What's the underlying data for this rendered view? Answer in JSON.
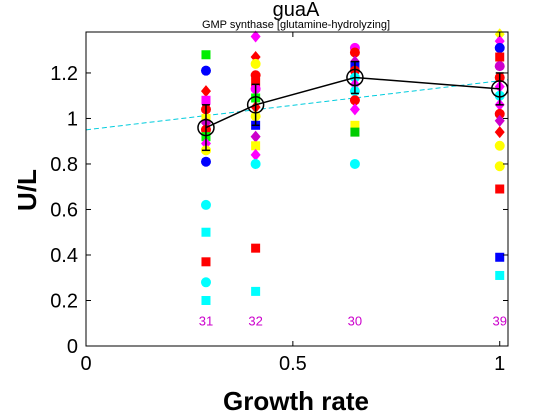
{
  "chart_data": {
    "type": "scatter",
    "title": "guaA",
    "subtitle": "GMP synthase [glutamine-hydrolyzing]",
    "xlabel": "Growth rate",
    "ylabel": "U/L",
    "xlim": [
      0,
      1.02
    ],
    "ylim": [
      0,
      1.38
    ],
    "xticks": [
      0,
      0.5,
      1
    ],
    "xtick_labels": [
      "0",
      "0.5",
      "1"
    ],
    "yticks": [
      0,
      0.2,
      0.4,
      0.6,
      0.8,
      1,
      1.2
    ],
    "ytick_labels": [
      "0",
      "0.2",
      "0.4",
      "0.6",
      "0.8",
      "1",
      "1.2"
    ],
    "grid": false,
    "groups": [
      {
        "x": 0.29,
        "count": "31",
        "mean": 0.96,
        "err": 0.1
      },
      {
        "x": 0.41,
        "count": "32",
        "mean": 1.06,
        "err": 0.09
      },
      {
        "x": 0.65,
        "count": "30",
        "mean": 1.18,
        "err": 0.07
      },
      {
        "x": 1.0,
        "count": "39",
        "mean": 1.13,
        "err": 0.07
      }
    ],
    "points": [
      {
        "x": 0.29,
        "y": 1.28,
        "shape": "square",
        "color": "#00ee00"
      },
      {
        "x": 0.29,
        "y": 1.21,
        "shape": "circle",
        "color": "#0000ff"
      },
      {
        "x": 0.29,
        "y": 1.12,
        "shape": "diamond",
        "color": "#ff0000"
      },
      {
        "x": 0.29,
        "y": 1.08,
        "shape": "square",
        "color": "#ff00ff"
      },
      {
        "x": 0.29,
        "y": 1.04,
        "shape": "circle",
        "color": "#ff0000"
      },
      {
        "x": 0.29,
        "y": 1.0,
        "shape": "square",
        "color": "#ffff00"
      },
      {
        "x": 0.29,
        "y": 0.98,
        "shape": "diamond",
        "color": "#cc00cc"
      },
      {
        "x": 0.29,
        "y": 0.95,
        "shape": "circle",
        "color": "#ff0000"
      },
      {
        "x": 0.29,
        "y": 0.92,
        "shape": "square",
        "color": "#00ff00"
      },
      {
        "x": 0.29,
        "y": 0.89,
        "shape": "diamond",
        "color": "#ff00ff"
      },
      {
        "x": 0.29,
        "y": 0.86,
        "shape": "circle",
        "color": "#ffff00"
      },
      {
        "x": 0.29,
        "y": 0.81,
        "shape": "circle",
        "color": "#0000ff"
      },
      {
        "x": 0.29,
        "y": 0.62,
        "shape": "circle",
        "color": "#00ffff"
      },
      {
        "x": 0.29,
        "y": 0.5,
        "shape": "square",
        "color": "#00ffff"
      },
      {
        "x": 0.29,
        "y": 0.37,
        "shape": "square",
        "color": "#ff0000"
      },
      {
        "x": 0.29,
        "y": 0.28,
        "shape": "circle",
        "color": "#00ffff"
      },
      {
        "x": 0.29,
        "y": 0.2,
        "shape": "square",
        "color": "#00ffff"
      },
      {
        "x": 0.41,
        "y": 1.36,
        "shape": "diamond",
        "color": "#ff00ff"
      },
      {
        "x": 0.41,
        "y": 1.27,
        "shape": "diamond",
        "color": "#ff0000"
      },
      {
        "x": 0.41,
        "y": 1.24,
        "shape": "circle",
        "color": "#ffff00"
      },
      {
        "x": 0.41,
        "y": 1.19,
        "shape": "circle",
        "color": "#ff0000"
      },
      {
        "x": 0.41,
        "y": 1.16,
        "shape": "square",
        "color": "#ff0000"
      },
      {
        "x": 0.41,
        "y": 1.13,
        "shape": "circle",
        "color": "#ff00ff"
      },
      {
        "x": 0.41,
        "y": 1.09,
        "shape": "square",
        "color": "#00ff00"
      },
      {
        "x": 0.41,
        "y": 1.05,
        "shape": "diamond",
        "color": "#ff0000"
      },
      {
        "x": 0.41,
        "y": 1.01,
        "shape": "circle",
        "color": "#ffff00"
      },
      {
        "x": 0.41,
        "y": 0.97,
        "shape": "square",
        "color": "#0000ff"
      },
      {
        "x": 0.41,
        "y": 0.92,
        "shape": "diamond",
        "color": "#cc00cc"
      },
      {
        "x": 0.41,
        "y": 0.88,
        "shape": "square",
        "color": "#ffff00"
      },
      {
        "x": 0.41,
        "y": 0.84,
        "shape": "diamond",
        "color": "#ff00ff"
      },
      {
        "x": 0.41,
        "y": 0.8,
        "shape": "circle",
        "color": "#00ffff"
      },
      {
        "x": 0.41,
        "y": 0.43,
        "shape": "square",
        "color": "#ff0000"
      },
      {
        "x": 0.41,
        "y": 0.24,
        "shape": "square",
        "color": "#00ffff"
      },
      {
        "x": 0.65,
        "y": 1.31,
        "shape": "circle",
        "color": "#ff00ff"
      },
      {
        "x": 0.65,
        "y": 1.29,
        "shape": "circle",
        "color": "#ff0000"
      },
      {
        "x": 0.65,
        "y": 1.25,
        "shape": "diamond",
        "color": "#cc00cc"
      },
      {
        "x": 0.65,
        "y": 1.23,
        "shape": "square",
        "color": "#0000ff"
      },
      {
        "x": 0.65,
        "y": 1.21,
        "shape": "circle",
        "color": "#ff0000"
      },
      {
        "x": 0.65,
        "y": 1.18,
        "shape": "circle",
        "color": "#00ffff"
      },
      {
        "x": 0.65,
        "y": 1.15,
        "shape": "diamond",
        "color": "#ff00ff"
      },
      {
        "x": 0.65,
        "y": 1.12,
        "shape": "circle",
        "color": "#00ffff"
      },
      {
        "x": 0.65,
        "y": 1.08,
        "shape": "circle",
        "color": "#ff0000"
      },
      {
        "x": 0.65,
        "y": 1.04,
        "shape": "diamond",
        "color": "#ff00ff"
      },
      {
        "x": 0.65,
        "y": 0.97,
        "shape": "square",
        "color": "#ffff00"
      },
      {
        "x": 0.65,
        "y": 0.94,
        "shape": "square",
        "color": "#00cc00"
      },
      {
        "x": 0.65,
        "y": 0.8,
        "shape": "circle",
        "color": "#00ffff"
      },
      {
        "x": 1.0,
        "y": 1.37,
        "shape": "diamond",
        "color": "#ffff00"
      },
      {
        "x": 1.0,
        "y": 1.34,
        "shape": "diamond",
        "color": "#ff00ff"
      },
      {
        "x": 1.0,
        "y": 1.31,
        "shape": "circle",
        "color": "#0000ff"
      },
      {
        "x": 1.0,
        "y": 1.27,
        "shape": "square",
        "color": "#ff0000"
      },
      {
        "x": 1.0,
        "y": 1.23,
        "shape": "circle",
        "color": "#cc00cc"
      },
      {
        "x": 1.0,
        "y": 1.18,
        "shape": "circle",
        "color": "#ff0000"
      },
      {
        "x": 1.0,
        "y": 1.14,
        "shape": "diamond",
        "color": "#ff00ff"
      },
      {
        "x": 1.0,
        "y": 1.1,
        "shape": "circle",
        "color": "#00ffff"
      },
      {
        "x": 1.0,
        "y": 1.06,
        "shape": "diamond",
        "color": "#ff00ff"
      },
      {
        "x": 1.0,
        "y": 1.02,
        "shape": "circle",
        "color": "#ff0000"
      },
      {
        "x": 1.0,
        "y": 0.99,
        "shape": "diamond",
        "color": "#cc00cc"
      },
      {
        "x": 1.0,
        "y": 0.94,
        "shape": "diamond",
        "color": "#ff0000"
      },
      {
        "x": 1.0,
        "y": 0.88,
        "shape": "circle",
        "color": "#ffff00"
      },
      {
        "x": 1.0,
        "y": 0.79,
        "shape": "circle",
        "color": "#ffff00"
      },
      {
        "x": 1.0,
        "y": 0.69,
        "shape": "square",
        "color": "#ff0000"
      },
      {
        "x": 1.0,
        "y": 0.39,
        "shape": "square",
        "color": "#0000ff"
      },
      {
        "x": 1.0,
        "y": 0.31,
        "shape": "square",
        "color": "#00ffff"
      }
    ],
    "mean_line_color": "#000000",
    "fit_line": {
      "color": "#00ccdd",
      "y_at_xmin": 0.95,
      "y_at_xmax": 1.17
    }
  }
}
